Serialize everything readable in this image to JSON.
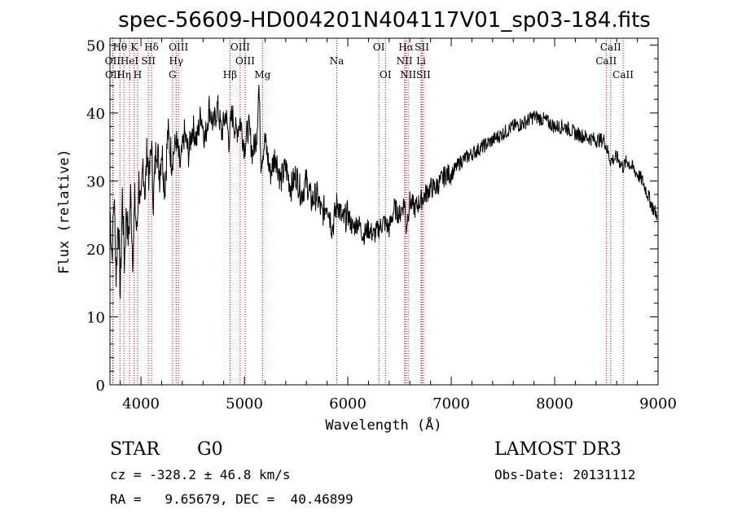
{
  "chart_data": {
    "type": "line",
    "title": "spec-56609-HD004201N404117V01_sp03-184.fits",
    "xlabel": "Wavelength (Å)",
    "ylabel": "Flux (relative)",
    "xlim": [
      3700,
      9000
    ],
    "ylim": [
      0,
      51
    ],
    "x_ticks": [
      4000,
      5000,
      6000,
      7000,
      8000,
      9000
    ],
    "y_ticks": [
      0,
      10,
      20,
      30,
      40,
      50
    ],
    "grid": false,
    "series": [
      {
        "color": "#000000",
        "points": [
          [
            3700,
            26
          ],
          [
            3720,
            19
          ],
          [
            3740,
            28
          ],
          [
            3760,
            16
          ],
          [
            3780,
            25
          ],
          [
            3800,
            13
          ],
          [
            3820,
            28
          ],
          [
            3840,
            18
          ],
          [
            3860,
            26
          ],
          [
            3880,
            21
          ],
          [
            3900,
            28
          ],
          [
            3920,
            19
          ],
          [
            3940,
            27
          ],
          [
            3960,
            22
          ],
          [
            3980,
            30
          ],
          [
            4000,
            25
          ],
          [
            4020,
            33
          ],
          [
            4040,
            28
          ],
          [
            4060,
            35
          ],
          [
            4080,
            30
          ],
          [
            4100,
            36
          ],
          [
            4120,
            27
          ],
          [
            4150,
            36
          ],
          [
            4180,
            31
          ],
          [
            4200,
            35
          ],
          [
            4230,
            29
          ],
          [
            4260,
            37
          ],
          [
            4300,
            33
          ],
          [
            4340,
            36
          ],
          [
            4380,
            32
          ],
          [
            4420,
            37
          ],
          [
            4460,
            34
          ],
          [
            4500,
            38
          ],
          [
            4540,
            36
          ],
          [
            4580,
            40
          ],
          [
            4620,
            36
          ],
          [
            4660,
            41
          ],
          [
            4700,
            38
          ],
          [
            4740,
            41
          ],
          [
            4780,
            37
          ],
          [
            4820,
            40
          ],
          [
            4850,
            36
          ],
          [
            4880,
            40
          ],
          [
            4920,
            37
          ],
          [
            4960,
            39
          ],
          [
            5000,
            35
          ],
          [
            5040,
            38
          ],
          [
            5080,
            34
          ],
          [
            5120,
            37
          ],
          [
            5140,
            44
          ],
          [
            5160,
            33
          ],
          [
            5200,
            36
          ],
          [
            5250,
            31
          ],
          [
            5300,
            34
          ],
          [
            5350,
            30
          ],
          [
            5400,
            32
          ],
          [
            5450,
            29
          ],
          [
            5500,
            31
          ],
          [
            5550,
            28
          ],
          [
            5600,
            30
          ],
          [
            5650,
            27
          ],
          [
            5700,
            28
          ],
          [
            5750,
            25
          ],
          [
            5800,
            27
          ],
          [
            5850,
            23
          ],
          [
            5900,
            27
          ],
          [
            5950,
            24
          ],
          [
            6000,
            25
          ],
          [
            6050,
            23
          ],
          [
            6100,
            24
          ],
          [
            6150,
            22
          ],
          [
            6200,
            23
          ],
          [
            6250,
            22
          ],
          [
            6300,
            23
          ],
          [
            6350,
            24
          ],
          [
            6400,
            23
          ],
          [
            6450,
            26
          ],
          [
            6500,
            25
          ],
          [
            6550,
            27
          ],
          [
            6563,
            23
          ],
          [
            6600,
            27
          ],
          [
            6650,
            26
          ],
          [
            6700,
            27
          ],
          [
            6750,
            28
          ],
          [
            6800,
            29
          ],
          [
            6850,
            29
          ],
          [
            6900,
            30
          ],
          [
            6950,
            31
          ],
          [
            7000,
            31
          ],
          [
            7100,
            33
          ],
          [
            7200,
            34
          ],
          [
            7300,
            35
          ],
          [
            7400,
            36
          ],
          [
            7500,
            37
          ],
          [
            7600,
            38
          ],
          [
            7700,
            38.5
          ],
          [
            7800,
            39.5
          ],
          [
            7900,
            39
          ],
          [
            8000,
            38
          ],
          [
            8100,
            38
          ],
          [
            8200,
            37
          ],
          [
            8300,
            36.5
          ],
          [
            8400,
            36
          ],
          [
            8480,
            36
          ],
          [
            8540,
            33
          ],
          [
            8600,
            33.5
          ],
          [
            8662,
            32
          ],
          [
            8700,
            33
          ],
          [
            8750,
            32
          ],
          [
            8800,
            31
          ],
          [
            8850,
            30
          ],
          [
            8900,
            28
          ],
          [
            8950,
            26
          ],
          [
            8990,
            25
          ]
        ]
      }
    ],
    "annotations": [
      {
        "label": "Hθ",
        "x": 3797,
        "row": 0
      },
      {
        "label": "K",
        "x": 3934,
        "row": 0
      },
      {
        "label": "Hδ",
        "x": 4102,
        "row": 0
      },
      {
        "label": "OIII",
        "x": 4363,
        "row": 0
      },
      {
        "label": "OIII",
        "x": 4959,
        "row": 0
      },
      {
        "label": "OI",
        "x": 6300,
        "row": 0
      },
      {
        "label": "Hα",
        "x": 6563,
        "row": 0
      },
      {
        "label": "SII",
        "x": 6716,
        "row": 0
      },
      {
        "label": "CaII",
        "x": 8542,
        "row": 0
      },
      {
        "label": "OII",
        "x": 3727,
        "row": 1
      },
      {
        "label": "HeI",
        "x": 3889,
        "row": 1
      },
      {
        "label": "SII",
        "x": 4072,
        "row": 1
      },
      {
        "label": "Hγ",
        "x": 4340,
        "row": 1
      },
      {
        "label": "OIII",
        "x": 5007,
        "row": 1
      },
      {
        "label": "Na",
        "x": 5893,
        "row": 1
      },
      {
        "label": "NII",
        "x": 6548,
        "row": 1
      },
      {
        "label": "Li",
        "x": 6708,
        "row": 1
      },
      {
        "label": "CaII",
        "x": 8498,
        "row": 1
      },
      {
        "label": "OII",
        "x": 3729,
        "row": 2
      },
      {
        "label": "Hη",
        "x": 3835,
        "row": 2
      },
      {
        "label": "H",
        "x": 3968,
        "row": 2
      },
      {
        "label": "G",
        "x": 4305,
        "row": 2
      },
      {
        "label": "Hβ",
        "x": 4861,
        "row": 2
      },
      {
        "label": "Mg",
        "x": 5175,
        "row": 2
      },
      {
        "label": "OI",
        "x": 6364,
        "row": 2
      },
      {
        "label": "NII",
        "x": 6583,
        "row": 2
      },
      {
        "label": "SII",
        "x": 6731,
        "row": 2
      },
      {
        "label": "CaII",
        "x": 8662,
        "row": 2
      }
    ]
  },
  "info": {
    "object_class": "STAR",
    "subclass": "G0",
    "survey": "LAMOST DR3",
    "redshift": "cz = -328.2 ± 46.8 km/s",
    "obs_date": "Obs-Date: 20131112",
    "coords": "RA =   9.65679, DEC =  40.46899"
  }
}
